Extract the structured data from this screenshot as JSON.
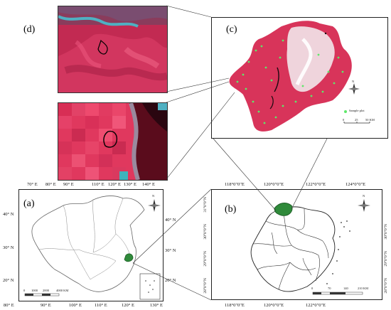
{
  "panels": {
    "a": "(a)",
    "b": "(b)",
    "c": "(c)",
    "d": "(d)"
  },
  "china_map": {
    "top_lon": [
      "70° E",
      "80° E",
      "90° E",
      "110° E",
      "120° E",
      "130° E",
      "140° E"
    ],
    "bottom_lon": [
      "80° E",
      "90° E",
      "100° E",
      "110° E",
      "120° E",
      "130° E"
    ],
    "left_lat": [
      "40° N",
      "30° N",
      "20° N"
    ],
    "right_lat": [
      "40° N",
      "30° N",
      "20° N"
    ],
    "scale_labels": [
      "0",
      "1000",
      "2000",
      "4000 KM"
    ],
    "north": "N"
  },
  "zhejiang_map": {
    "top_lon": [
      "118°0\"0\"E",
      "120°0\"0\"E",
      "122°0\"0\"E",
      "124°0\"0\"E"
    ],
    "bottom_lon": [
      "118°0\"0\"E",
      "120°0\"0\"E",
      "122°0\"0\"E"
    ],
    "left_lat": [
      "31°0\"0\"N",
      "30°0\"0\"N",
      "29°0\"0\"N",
      "28°0\"0\"N"
    ],
    "right_lat": [
      "30°0\"0\"N",
      "29°0\"0\"N",
      "28°0\"0\"N"
    ],
    "scale_labels": [
      "0",
      "70",
      "140",
      "210 KM"
    ],
    "north": "N"
  },
  "study_area": {
    "legend_label": "Sample plot",
    "scale_labels": [
      "0",
      "25",
      "50 KM"
    ],
    "north": "N"
  },
  "colors": {
    "landsat_red": "#d8345a",
    "urban_white": "#f2e6ea",
    "study_green": "#2f8a3a",
    "sample_green": "#5ee86a",
    "water_cyan": "#3fb3bd"
  }
}
